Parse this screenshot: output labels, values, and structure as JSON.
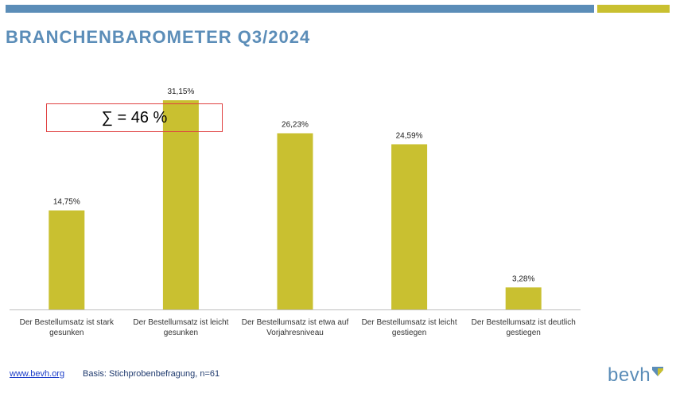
{
  "header": {
    "title": "BRANCHENBAROMETER Q3/2024"
  },
  "annotation": {
    "sum_label": "∑ = 46 %"
  },
  "footer": {
    "link": "www.bevh.org",
    "basis": "Basis: Stichprobenbefragung, n=61"
  },
  "logo": {
    "text": "bevh"
  },
  "colors": {
    "bar": "#c9c030",
    "title": "#5b8db8",
    "accent_blue": "#5b8db8",
    "annotation_border": "#e04040"
  },
  "chart_data": {
    "type": "bar",
    "title": "",
    "xlabel": "",
    "ylabel": "",
    "categories": [
      [
        "Der Bestellumsatz ist stark",
        "gesunken"
      ],
      [
        "Der Bestellumsatz ist leicht",
        "gesunken"
      ],
      [
        "Der Bestellumsatz ist etwa auf",
        "Vorjahresniveau"
      ],
      [
        "Der Bestellumsatz ist leicht",
        "gestiegen"
      ],
      [
        "Der Bestellumsatz ist deutlich",
        "gestiegen"
      ]
    ],
    "values": [
      14.75,
      31.15,
      26.23,
      24.59,
      3.28
    ],
    "data_labels": [
      "14,75%",
      "31,15%",
      "26,23%",
      "24,59%",
      "3,28%"
    ],
    "ylim": [
      0,
      31.15
    ],
    "grid": false,
    "legend": "none"
  }
}
